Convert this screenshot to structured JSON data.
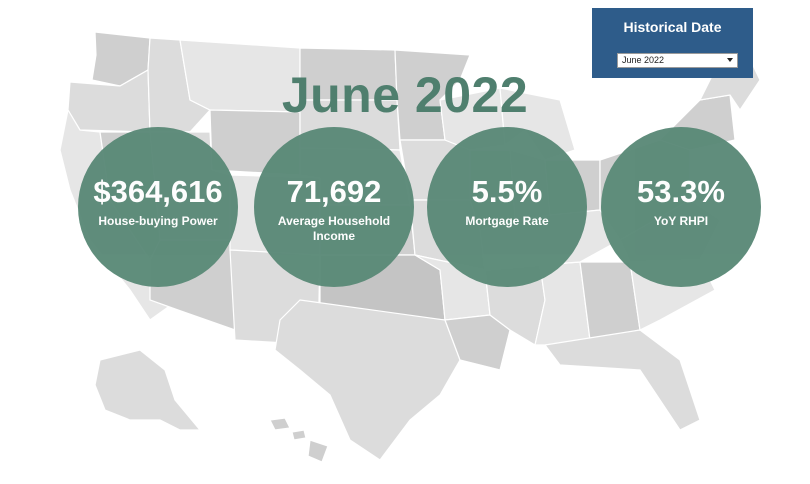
{
  "filter": {
    "title": "Historical Date",
    "selected": "June 2022"
  },
  "headline": "June 2022",
  "kpis": [
    {
      "value": "$364,616",
      "label": "House-buying Power"
    },
    {
      "value": "71,692",
      "label": "Average Household Income"
    },
    {
      "value": "5.5%",
      "label": "Mortgage Rate"
    },
    {
      "value": "53.3%",
      "label": "YoY RHPI"
    }
  ],
  "colors": {
    "kpi_fill": "#5b8a78",
    "headline": "#4f7f6e",
    "filter_panel": "#2e5c8a",
    "map_fill": "#d3d3d3"
  },
  "icons": {
    "dropdown": "chevron-down-icon"
  }
}
